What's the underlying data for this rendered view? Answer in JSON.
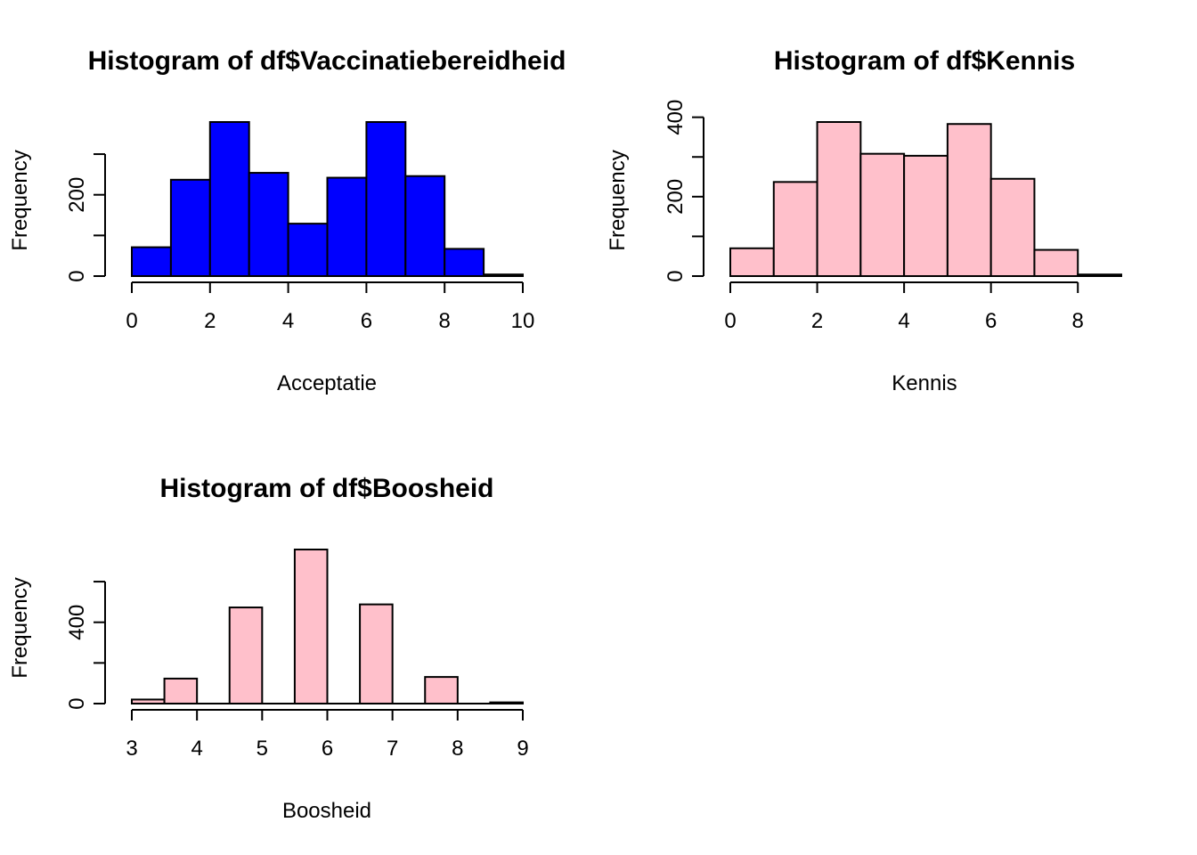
{
  "chart_data": [
    {
      "type": "bar",
      "title": "Histogram of df$Vaccinatiebereidheid",
      "xlabel": "Acceptatie",
      "ylabel": "Frequency",
      "fill_color": "#0000ff",
      "bins": [
        [
          0,
          1
        ],
        [
          1,
          2
        ],
        [
          2,
          3
        ],
        [
          3,
          4
        ],
        [
          4,
          5
        ],
        [
          5,
          6
        ],
        [
          6,
          7
        ],
        [
          7,
          8
        ],
        [
          8,
          9
        ],
        [
          9,
          10
        ]
      ],
      "values": [
        71,
        237,
        379,
        254,
        129,
        242,
        379,
        246,
        67,
        4
      ],
      "xlim": [
        0,
        10
      ],
      "ylim": [
        0,
        379
      ],
      "x_ticks": [
        0,
        2,
        4,
        6,
        8,
        10
      ],
      "x_tick_labels": [
        "0",
        "2",
        "4",
        "6",
        "8",
        "10"
      ],
      "y_ticks": [
        0,
        100,
        200,
        300
      ],
      "y_tick_labels": [
        "0",
        "",
        "200",
        ""
      ]
    },
    {
      "type": "bar",
      "title": "Histogram of df$Kennis",
      "xlabel": "Kennis",
      "ylabel": "Frequency",
      "fill_color": "#ffc0cb",
      "bins": [
        [
          0,
          1
        ],
        [
          1,
          2
        ],
        [
          2,
          3
        ],
        [
          3,
          4
        ],
        [
          4,
          5
        ],
        [
          5,
          6
        ],
        [
          6,
          7
        ],
        [
          7,
          8
        ],
        [
          8,
          9
        ]
      ],
      "values": [
        70,
        237,
        388,
        308,
        303,
        383,
        245,
        66,
        4
      ],
      "xlim": [
        0,
        9
      ],
      "ylim": [
        0,
        388
      ],
      "x_ticks": [
        0,
        2,
        4,
        6,
        8
      ],
      "x_tick_labels": [
        "0",
        "2",
        "4",
        "6",
        "8"
      ],
      "y_ticks": [
        0,
        100,
        200,
        300,
        400
      ],
      "y_tick_labels": [
        "0",
        "",
        "200",
        "",
        "400"
      ]
    },
    {
      "type": "bar",
      "title": "Histogram of df$Boosheid",
      "xlabel": "Boosheid",
      "ylabel": "Frequency",
      "fill_color": "#ffc0cb",
      "bins": [
        [
          3,
          3.5
        ],
        [
          3.5,
          4
        ],
        [
          4,
          4.5
        ],
        [
          4.5,
          5
        ],
        [
          5,
          5.5
        ],
        [
          5.5,
          6
        ],
        [
          6,
          6.5
        ],
        [
          6.5,
          7
        ],
        [
          7,
          7.5
        ],
        [
          7.5,
          8
        ],
        [
          8,
          8.5
        ],
        [
          8.5,
          9
        ]
      ],
      "values": [
        20,
        123,
        0,
        473,
        0,
        758,
        0,
        488,
        0,
        131,
        0,
        6
      ],
      "xlim": [
        3,
        9
      ],
      "ylim": [
        0,
        758
      ],
      "x_ticks": [
        3,
        4,
        5,
        6,
        7,
        8,
        9
      ],
      "x_tick_labels": [
        "3",
        "4",
        "5",
        "6",
        "7",
        "8",
        "9"
      ],
      "y_ticks": [
        0,
        200,
        400,
        600
      ],
      "y_tick_labels": [
        "0",
        "",
        "400",
        ""
      ]
    }
  ]
}
